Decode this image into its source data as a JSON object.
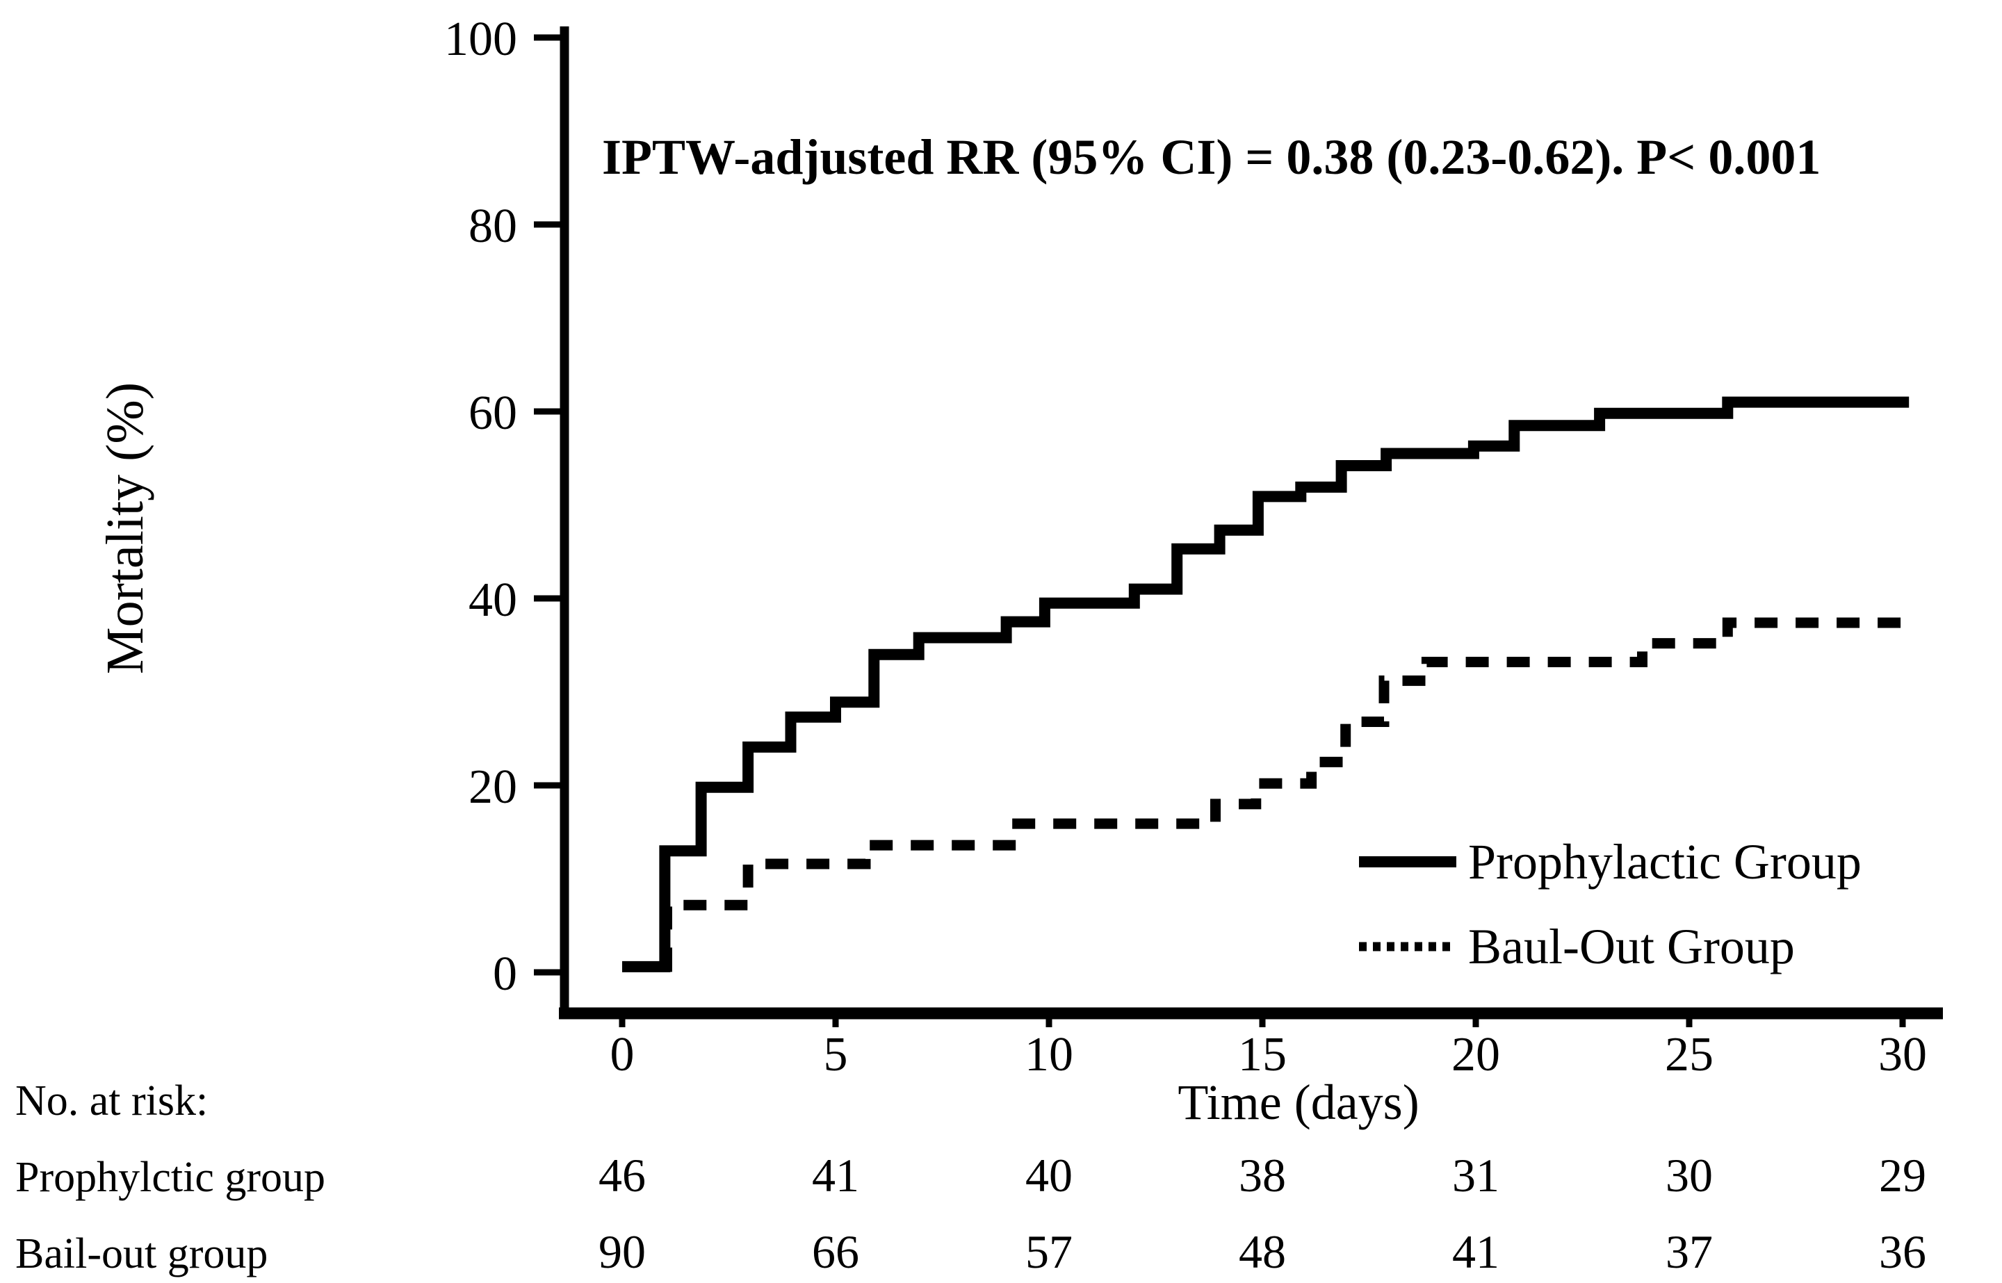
{
  "figure_background": "#ffffff",
  "ink_color": "#000000",
  "chart_data": {
    "type": "line",
    "subtype": "step-post-kaplan-meier",
    "title": "",
    "annotation": "IPTW-adjusted RR (95% CI) = 0.38 (0.23-0.62). P< 0.001",
    "xlabel": "Time (days)",
    "ylabel": "Mortality (%)",
    "xlim": [
      0,
      31
    ],
    "ylim": [
      0,
      100
    ],
    "x_ticks": [
      0,
      5,
      10,
      15,
      20,
      25,
      30
    ],
    "y_ticks": [
      0,
      20,
      40,
      60,
      80,
      100
    ],
    "grid": "off",
    "legend_position": "lower right",
    "series": [
      {
        "name": "Prophylactic Group",
        "line": "solid",
        "color": "#000000",
        "end_x": 30.15,
        "points": [
          [
            0,
            0.6
          ],
          [
            1,
            13.0
          ],
          [
            1.85,
            19.8
          ],
          [
            2.95,
            24.1
          ],
          [
            3.95,
            27.3
          ],
          [
            5,
            28.9
          ],
          [
            5.9,
            34.0
          ],
          [
            6.95,
            35.8
          ],
          [
            9,
            37.5
          ],
          [
            9.9,
            39.5
          ],
          [
            12,
            41.0
          ],
          [
            13,
            45.3
          ],
          [
            14,
            47.3
          ],
          [
            14.9,
            50.9
          ],
          [
            15.9,
            51.9
          ],
          [
            16.85,
            54.2
          ],
          [
            17.9,
            55.5
          ],
          [
            19.95,
            56.3
          ],
          [
            20.9,
            58.5
          ],
          [
            22.9,
            59.8
          ],
          [
            25.9,
            61.0
          ]
        ]
      },
      {
        "name": "Baul-Out Group",
        "line": "dotted",
        "color": "#000000",
        "end_x": 30.1,
        "points": [
          [
            0,
            0.6
          ],
          [
            1.05,
            7.2
          ],
          [
            2.95,
            11.6
          ],
          [
            5.7,
            13.6
          ],
          [
            9.1,
            15.9
          ],
          [
            13.9,
            18.0
          ],
          [
            14.85,
            20.2
          ],
          [
            16.15,
            22.5
          ],
          [
            16.95,
            26.8
          ],
          [
            17.85,
            31.2
          ],
          [
            18.85,
            33.2
          ],
          [
            23.9,
            35.2
          ],
          [
            25.9,
            37.4
          ]
        ]
      }
    ],
    "risk_table": {
      "title": "No. at risk:",
      "time_points": [
        0,
        5,
        10,
        15,
        20,
        25,
        30
      ],
      "rows": [
        {
          "label": "Prophylctic group",
          "values": [
            "46",
            "41",
            "40",
            "38",
            "31",
            "30",
            "29"
          ]
        },
        {
          "label": "Bail-out group",
          "values": [
            "90",
            "66",
            "57",
            "48",
            "41",
            "37",
            "36"
          ]
        }
      ]
    }
  }
}
